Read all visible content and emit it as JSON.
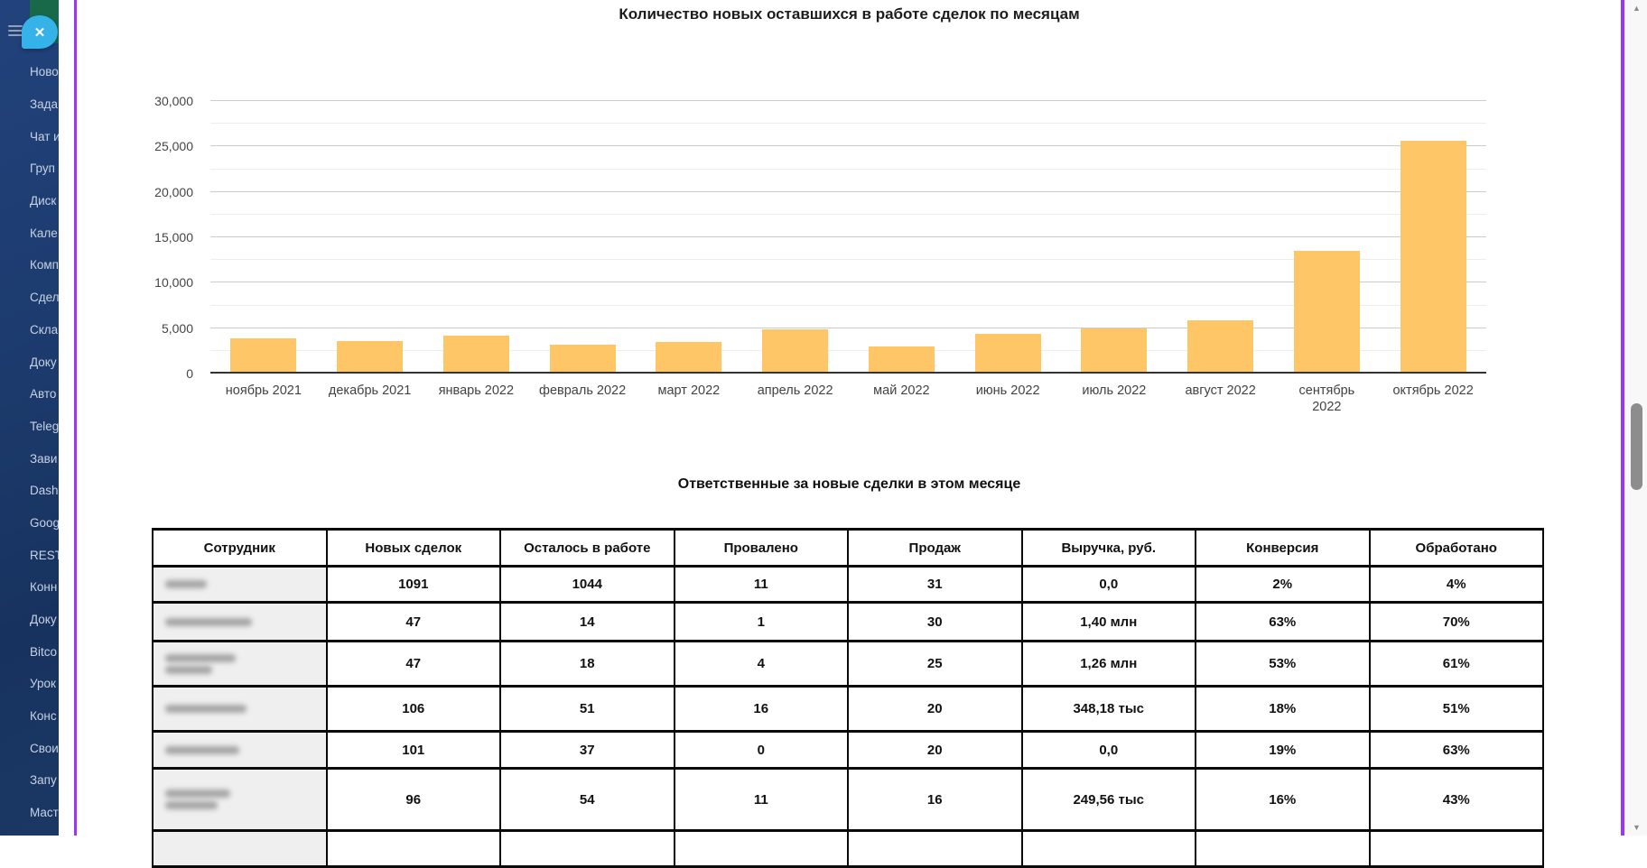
{
  "sidebar": {
    "items": [
      {
        "label": "Ново"
      },
      {
        "label": "Зада"
      },
      {
        "label": "Чат и"
      },
      {
        "label": "Груп"
      },
      {
        "label": "Диск"
      },
      {
        "label": "Кале"
      },
      {
        "label": "Комп"
      },
      {
        "label": "Сдел"
      },
      {
        "label": "Скла"
      },
      {
        "label": "Доку"
      },
      {
        "label": "Авто"
      },
      {
        "label": "Teleg"
      },
      {
        "label": "Зави"
      },
      {
        "label": "Dash"
      },
      {
        "label": "Goog"
      },
      {
        "label": "REST"
      },
      {
        "label": "Конн"
      },
      {
        "label": "Доку"
      },
      {
        "label": "Bitco"
      },
      {
        "label": "Урок"
      },
      {
        "label": "Конс"
      },
      {
        "label": "Свои"
      },
      {
        "label": "Запу"
      },
      {
        "label": "Маст"
      }
    ]
  },
  "chat_widget": {
    "close_icon": "✕"
  },
  "chart_data": {
    "type": "bar",
    "title": "Количество новых оставшихся в работе сделок по месяцам",
    "categories": [
      "ноябрь 2021",
      "декабрь 2021",
      "январь 2022",
      "февраль 2022",
      "март 2022",
      "апрель 2022",
      "май 2022",
      "июнь 2022",
      "июль 2022",
      "август 2022",
      "сентябрь\n2022",
      "октябрь 2022"
    ],
    "values": [
      3700,
      3400,
      4000,
      3000,
      3300,
      4650,
      2750,
      4200,
      4800,
      5700,
      13350,
      25400
    ],
    "bar_color": "#ffc667",
    "ylim": [
      0,
      30000
    ],
    "ytick_step": 5000,
    "minor_step": 2500,
    "ytick_labels": [
      "30,000",
      "25,000",
      "20,000",
      "15,000",
      "10,000",
      "5,000",
      "0"
    ],
    "grid": true,
    "legend": "none"
  },
  "table": {
    "title": "Ответственные за новые сделки в этом месяце",
    "columns": [
      "Сотрудник",
      "Новых сделок",
      "Осталось в работе",
      "Провалено",
      "Продаж",
      "Выручка, руб.",
      "Конверсия",
      "Обработано"
    ],
    "rows": [
      {
        "name_redacted": true,
        "name_lines": 1,
        "cells": [
          "1091",
          "1044",
          "11",
          "31",
          "0,0",
          "2%",
          "4%"
        ]
      },
      {
        "name_redacted": true,
        "name_lines": 1,
        "cells": [
          "47",
          "14",
          "1",
          "30",
          "1,40 млн",
          "63%",
          "70%"
        ]
      },
      {
        "name_redacted": true,
        "name_lines": 2,
        "cells": [
          "47",
          "18",
          "4",
          "25",
          "1,26 млн",
          "53%",
          "61%"
        ]
      },
      {
        "name_redacted": true,
        "name_lines": 1,
        "cells": [
          "106",
          "51",
          "16",
          "20",
          "348,18 тыс",
          "18%",
          "51%"
        ]
      },
      {
        "name_redacted": true,
        "name_lines": 1,
        "cells": [
          "101",
          "37",
          "0",
          "20",
          "0,0",
          "19%",
          "63%"
        ]
      },
      {
        "name_redacted": true,
        "name_lines": 2,
        "cells": [
          "96",
          "54",
          "11",
          "16",
          "249,56 тыс",
          "16%",
          "43%"
        ]
      },
      {
        "name_redacted": true,
        "name_lines": 0,
        "cells": [
          "",
          "",
          "",
          "",
          "",
          "",
          ""
        ]
      }
    ]
  },
  "scrollbar": {
    "up_arrow": "▲",
    "down_arrow": "▼"
  }
}
